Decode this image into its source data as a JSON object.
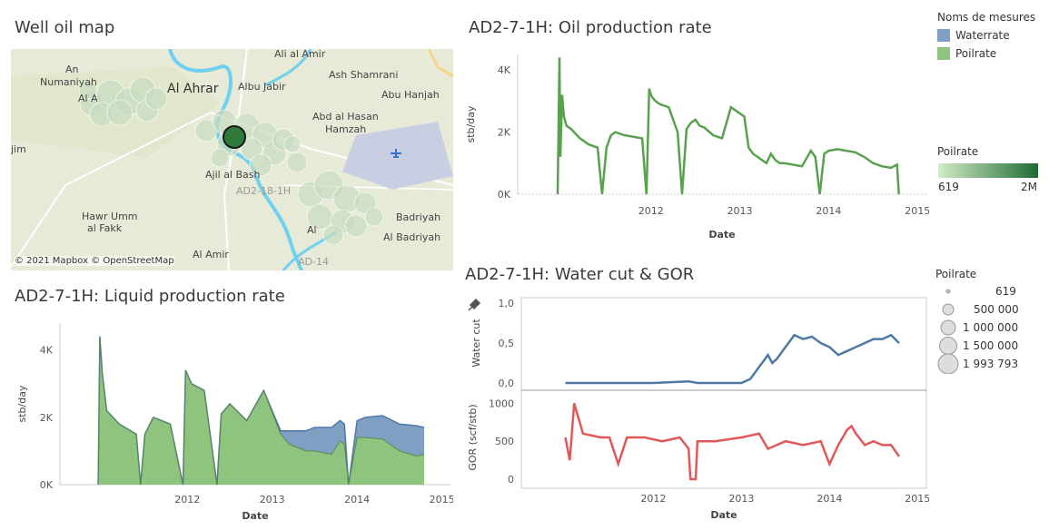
{
  "map": {
    "title": "Well oil map",
    "attribution": "© 2021 Mapbox © OpenStreetMap",
    "labels": [
      "Ali al Amir",
      "An",
      "Numaniyah",
      "Al A",
      "Al Ahrar",
      "Albu Jabir",
      "Ash Shamrani",
      "Abu Hanjah",
      "Abd al Hasan",
      "Hamzah",
      "jim",
      "Ajil al Bash",
      "AD2-18-1H",
      "Hawr Umm",
      "al Fakk",
      "Badriyah",
      "Al Badriyah",
      "Al Amir",
      "AD-14",
      "Al"
    ],
    "airport_icon": "airplane-icon"
  },
  "oil_chart": {
    "title": "AD2-7-1H: Oil production rate",
    "ylabel": "stb/day",
    "xlabel": "Date",
    "yticks": [
      "4K",
      "2K",
      "0K"
    ],
    "xticks": [
      "2012",
      "2013",
      "2014",
      "2015"
    ]
  },
  "liquid_chart": {
    "title": "AD2-7-1H: Liquid production rate",
    "ylabel": "stb/day",
    "xlabel": "Date",
    "yticks": [
      "4K",
      "2K",
      "0K"
    ],
    "xticks": [
      "2012",
      "2013",
      "2014",
      "2015"
    ]
  },
  "wc_chart": {
    "title": "AD2-7-1H:  Water cut & GOR",
    "top_ylabel": "Water cut",
    "top_yticks": [
      "1,0",
      "0,5",
      "0,0"
    ],
    "bottom_ylabel": "GOR (scf/stb)",
    "bottom_yticks": [
      "1000",
      "500",
      "0"
    ],
    "xlabel": "Date",
    "xticks": [
      "2012",
      "2013",
      "2014",
      "2015"
    ],
    "pin_icon": "pin-icon"
  },
  "legend_measures": {
    "title": "Noms de mesures",
    "items": [
      {
        "label": "Waterrate",
        "color": "#7f9fc3"
      },
      {
        "label": "Poilrate",
        "color": "#8fc47f"
      }
    ]
  },
  "legend_color": {
    "title": "Poilrate",
    "min": "619",
    "max": "2M",
    "color_min": "#d4ecc6",
    "color_max": "#1f6b33"
  },
  "legend_size": {
    "title": "Poilrate",
    "items": [
      "619",
      "500 000",
      "1 000 000",
      "1 500 000",
      "1 993 793"
    ]
  },
  "colors": {
    "oil": "#59a14f",
    "water": "#4e79a7",
    "gor": "#e15759",
    "oil_fill": "#8fc47f",
    "water_fill": "#7f9fc3"
  },
  "chart_data": [
    {
      "type": "line",
      "title": "AD2-7-1H: Oil production rate",
      "xlabel": "Date",
      "ylabel": "stb/day",
      "ylim": [
        0,
        4500
      ],
      "xlim": [
        2011.0,
        2015.6
      ],
      "series": [
        {
          "name": "Poilrate",
          "x": [
            2011.45,
            2011.47,
            2011.48,
            2011.5,
            2011.52,
            2011.55,
            2011.6,
            2011.7,
            2011.8,
            2011.9,
            2011.95,
            2012.0,
            2012.05,
            2012.1,
            2012.2,
            2012.3,
            2012.4,
            2012.45,
            2012.48,
            2012.5,
            2012.52,
            2012.55,
            2012.6,
            2012.7,
            2012.8,
            2012.85,
            2012.9,
            2012.95,
            2013.0,
            2013.05,
            2013.1,
            2013.2,
            2013.3,
            2013.4,
            2013.5,
            2013.55,
            2013.6,
            2013.65,
            2013.7,
            2013.75,
            2013.8,
            2013.85,
            2013.9,
            2013.95,
            2014.0,
            2014.1,
            2014.2,
            2014.3,
            2014.35,
            2014.4,
            2014.45,
            2014.5,
            2014.6,
            2014.7,
            2014.8,
            2014.9,
            2015.0,
            2015.1,
            2015.2,
            2015.27,
            2015.29
          ],
          "y": [
            0,
            4400,
            1200,
            3200,
            2500,
            2200,
            2100,
            1800,
            1600,
            1500,
            0,
            1500,
            1900,
            2000,
            1900,
            1850,
            1800,
            0,
            3400,
            3200,
            3100,
            3000,
            2900,
            2800,
            2000,
            0,
            2100,
            2300,
            2400,
            2200,
            2150,
            1900,
            1800,
            2800,
            2600,
            2500,
            1500,
            1300,
            1200,
            1100,
            1000,
            1300,
            1100,
            1000,
            1000,
            950,
            900,
            1400,
            1200,
            0,
            1300,
            1400,
            1450,
            1400,
            1350,
            1200,
            1000,
            900,
            850,
            950,
            0
          ]
        }
      ]
    },
    {
      "type": "area",
      "title": "AD2-7-1H: Liquid production rate",
      "xlabel": "Date",
      "ylabel": "stb/day",
      "ylim": [
        0,
        4800
      ],
      "xlim": [
        2011.0,
        2015.6
      ],
      "x": [
        2011.45,
        2011.47,
        2011.5,
        2011.55,
        2011.7,
        2011.9,
        2011.95,
        2012.0,
        2012.1,
        2012.3,
        2012.45,
        2012.48,
        2012.55,
        2012.7,
        2012.85,
        2012.9,
        2013.0,
        2013.2,
        2013.4,
        2013.6,
        2013.7,
        2013.8,
        2013.9,
        2014.0,
        2014.2,
        2014.3,
        2014.35,
        2014.4,
        2014.5,
        2014.6,
        2014.8,
        2015.0,
        2015.2,
        2015.29
      ],
      "series": [
        {
          "name": "Poilrate",
          "values": [
            0,
            4400,
            3300,
            2200,
            1800,
            1500,
            0,
            1500,
            2000,
            1800,
            0,
            3400,
            3000,
            2800,
            0,
            2100,
            2400,
            1900,
            2800,
            1500,
            1200,
            1100,
            1000,
            1000,
            900,
            1300,
            1200,
            0,
            1400,
            1400,
            1350,
            1000,
            850,
            900
          ]
        },
        {
          "name": "Waterrate",
          "values": [
            0,
            0,
            0,
            0,
            0,
            0,
            0,
            0,
            0,
            0,
            0,
            0,
            0,
            0,
            0,
            0,
            0,
            0,
            0,
            100,
            400,
            500,
            600,
            700,
            800,
            600,
            600,
            0,
            500,
            600,
            700,
            800,
            900,
            800
          ]
        }
      ]
    },
    {
      "type": "line",
      "title": "AD2-7-1H:  Water cut & GOR",
      "xlabel": "Date",
      "panels": [
        {
          "ylabel": "Water cut",
          "ylim": [
            0,
            1.0
          ],
          "series": [
            {
              "name": "Water cut",
              "x": [
                2011.5,
                2012.0,
                2012.5,
                2012.9,
                2013.0,
                2013.5,
                2013.6,
                2013.7,
                2013.8,
                2013.85,
                2013.9,
                2014.0,
                2014.1,
                2014.2,
                2014.3,
                2014.4,
                2014.5,
                2014.6,
                2014.7,
                2014.8,
                2014.9,
                2015.0,
                2015.1,
                2015.2,
                2015.29
              ],
              "y": [
                0.0,
                0.0,
                0.0,
                0.02,
                0.0,
                0.0,
                0.05,
                0.2,
                0.35,
                0.25,
                0.3,
                0.45,
                0.6,
                0.55,
                0.58,
                0.5,
                0.45,
                0.35,
                0.4,
                0.45,
                0.5,
                0.55,
                0.55,
                0.6,
                0.5
              ]
            }
          ]
        },
        {
          "ylabel": "GOR (scf/stb)",
          "ylim": [
            0,
            1100
          ],
          "series": [
            {
              "name": "GOR",
              "x": [
                2011.5,
                2011.55,
                2011.6,
                2011.7,
                2011.9,
                2012.0,
                2012.1,
                2012.2,
                2012.4,
                2012.6,
                2012.8,
                2012.9,
                2012.92,
                2012.98,
                2013.0,
                2013.2,
                2013.5,
                2013.7,
                2013.8,
                2013.9,
                2014.0,
                2014.2,
                2014.4,
                2014.5,
                2014.6,
                2014.7,
                2014.75,
                2014.8,
                2014.9,
                2015.0,
                2015.1,
                2015.2,
                2015.29
              ],
              "y": [
                550,
                250,
                1000,
                600,
                550,
                550,
                200,
                550,
                550,
                500,
                550,
                400,
                0,
                0,
                500,
                500,
                550,
                600,
                400,
                450,
                500,
                450,
                500,
                200,
                450,
                650,
                700,
                600,
                450,
                500,
                450,
                450,
                300
              ]
            }
          ]
        }
      ],
      "xticks": [
        "2012",
        "2013",
        "2014",
        "2015"
      ]
    }
  ]
}
